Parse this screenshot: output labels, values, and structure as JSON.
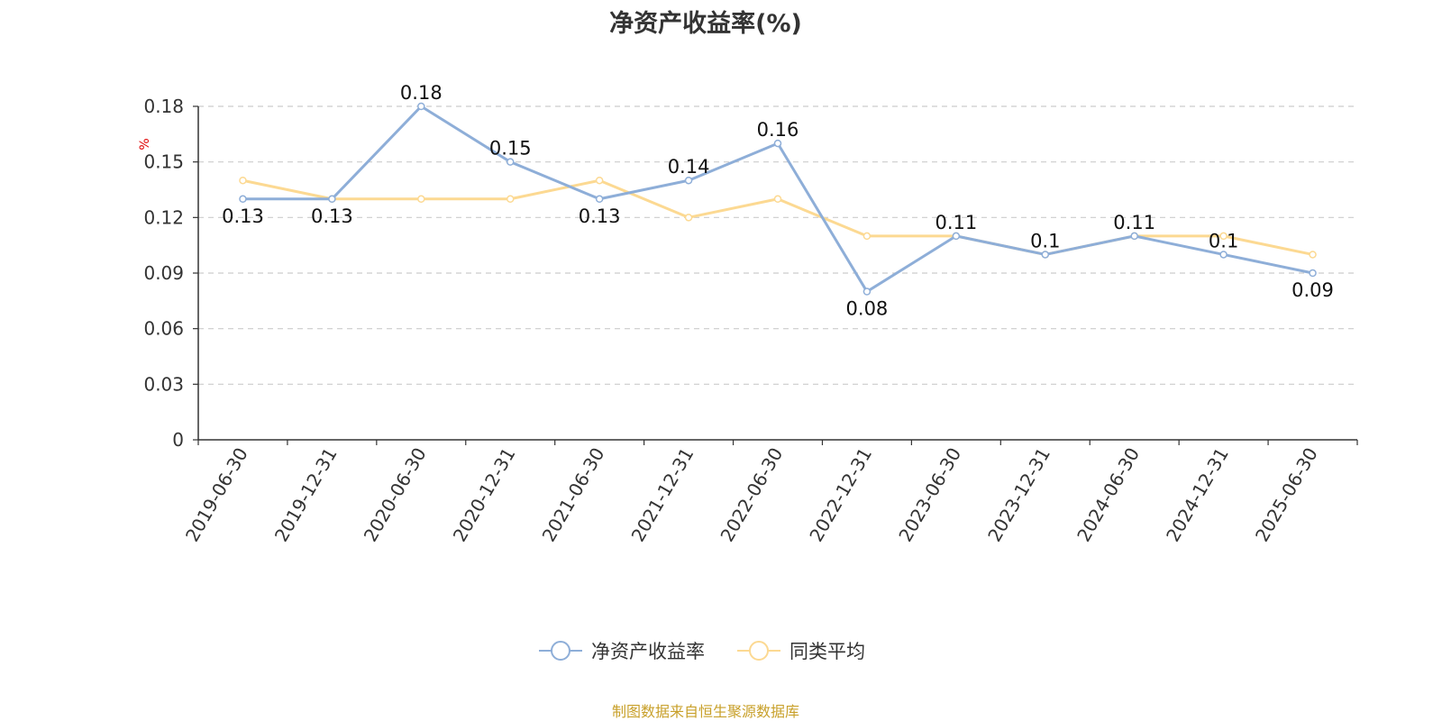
{
  "chart_data": {
    "type": "line",
    "title": "净资产收益率(%)",
    "ylabel": "%",
    "xlabel": "",
    "categories": [
      "2019-06-30",
      "2019-12-31",
      "2020-06-30",
      "2020-12-31",
      "2021-06-30",
      "2021-12-31",
      "2022-06-30",
      "2022-12-31",
      "2023-06-30",
      "2023-12-31",
      "2024-06-30",
      "2024-12-31",
      "2025-06-30"
    ],
    "ylim": [
      0,
      0.18
    ],
    "yticks": [
      "0",
      "0.03",
      "0.06",
      "0.09",
      "0.12",
      "0.15",
      "0.18"
    ],
    "grid": true,
    "legend_position": "bottom",
    "series": [
      {
        "name": "净资产收益率",
        "color": "#8eaed8",
        "values": [
          0.13,
          0.13,
          0.18,
          0.15,
          0.13,
          0.14,
          0.16,
          0.08,
          0.11,
          0.1,
          0.11,
          0.1,
          0.09
        ],
        "labels": [
          "0.13",
          "0.13",
          "0.18",
          "0.15",
          "0.13",
          "0.14",
          "0.16",
          "0.08",
          "0.11",
          "0.1",
          "0.11",
          "0.1",
          "0.09"
        ]
      },
      {
        "name": "同类平均",
        "color": "#fcd992",
        "values": [
          0.14,
          0.13,
          0.13,
          0.13,
          0.14,
          0.12,
          0.13,
          0.11,
          0.11,
          0.1,
          0.11,
          0.11,
          0.1
        ]
      }
    ]
  },
  "source_note": "制图数据来自恒生聚源数据库"
}
